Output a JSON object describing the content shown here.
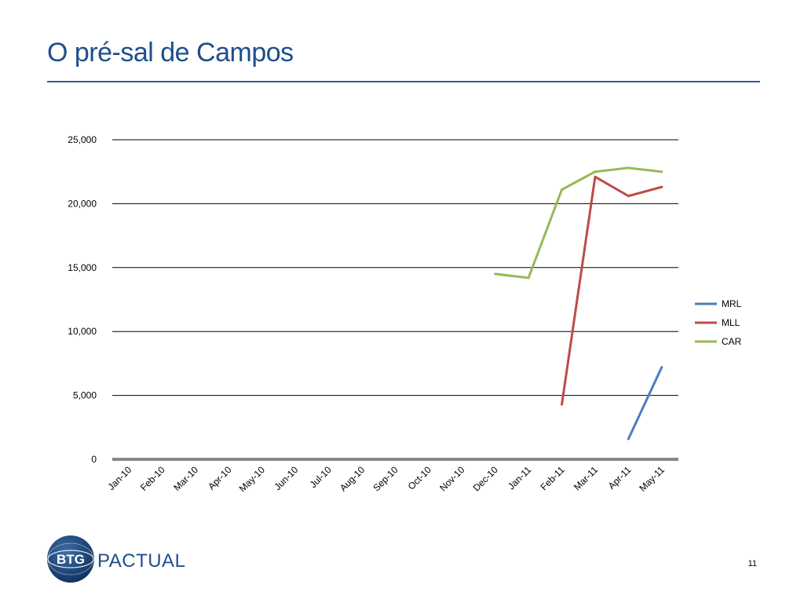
{
  "slide": {
    "title": "O pré-sal de Campos",
    "page_number": "11"
  },
  "logo": {
    "mark_text": "BTG",
    "wordmark": "PACTUAL"
  },
  "colors": {
    "title": "#1f4e8c",
    "rule": "#2d5f95",
    "baseline": "#888888"
  },
  "chart_data": {
    "type": "line",
    "categories": [
      "Jan-10",
      "Feb-10",
      "Mar-10",
      "Apr-10",
      "May-10",
      "Jun-10",
      "Jul-10",
      "Aug-10",
      "Sep-10",
      "Oct-10",
      "Nov-10",
      "Dec-10",
      "Jan-11",
      "Feb-11",
      "Mar-11",
      "Apr-11",
      "May-11"
    ],
    "ylim": [
      0,
      25000
    ],
    "yticks": [
      0,
      5000,
      10000,
      15000,
      20000,
      25000
    ],
    "ytick_labels": [
      "0",
      "5,000",
      "10,000",
      "15,000",
      "20,000",
      "25,000"
    ],
    "grid": true,
    "legend_position": "right",
    "series": [
      {
        "name": "MRL",
        "color": "#4a7ebb",
        "values": [
          null,
          null,
          null,
          null,
          null,
          null,
          null,
          null,
          null,
          null,
          null,
          null,
          null,
          null,
          null,
          1600,
          7200
        ]
      },
      {
        "name": "MLL",
        "color": "#be4b48",
        "values": [
          null,
          null,
          null,
          null,
          null,
          null,
          null,
          null,
          null,
          null,
          null,
          null,
          null,
          4300,
          22100,
          20600,
          21300
        ]
      },
      {
        "name": "CAR",
        "color": "#98b954",
        "values": [
          null,
          null,
          null,
          null,
          null,
          null,
          null,
          null,
          null,
          null,
          null,
          14500,
          14200,
          21100,
          22500,
          22800,
          22500
        ]
      }
    ]
  }
}
